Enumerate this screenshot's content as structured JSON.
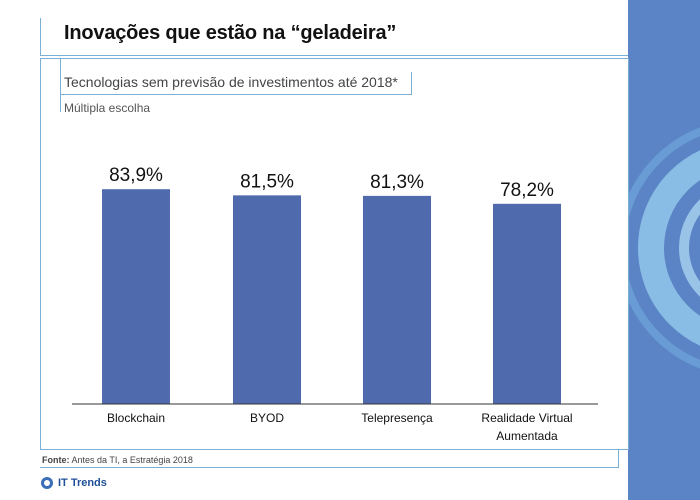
{
  "header": {
    "title": "Inovações que estão na “geladeira”",
    "subtitle": "Tecnologias sem previsão de investimentos até 2018*",
    "note": "Múltipla escolha"
  },
  "footer": {
    "source_label": "Fonte:",
    "source_text": "Antes da TI, a Estratégia 2018",
    "brand": "IT Trends"
  },
  "colors": {
    "bar": "#4f6aad",
    "side_panel": "#5b84c6",
    "accent_line": "#7ab0d6"
  },
  "chart_data": {
    "type": "bar",
    "categories": [
      "Blockchain",
      "BYOD",
      "Telepresença",
      "Realidade Virtual Aumentada"
    ],
    "category_label_lines": [
      [
        "Blockchain"
      ],
      [
        "BYOD"
      ],
      [
        "Telepresença"
      ],
      [
        "Realidade Virtual",
        "Aumentada"
      ]
    ],
    "values": [
      83.9,
      81.5,
      81.3,
      78.2
    ],
    "data_labels": [
      "83,9%",
      "81,5%",
      "81,3%",
      "78,2%"
    ],
    "xlabel": "",
    "ylabel": "",
    "grid": false,
    "legend": "none"
  }
}
